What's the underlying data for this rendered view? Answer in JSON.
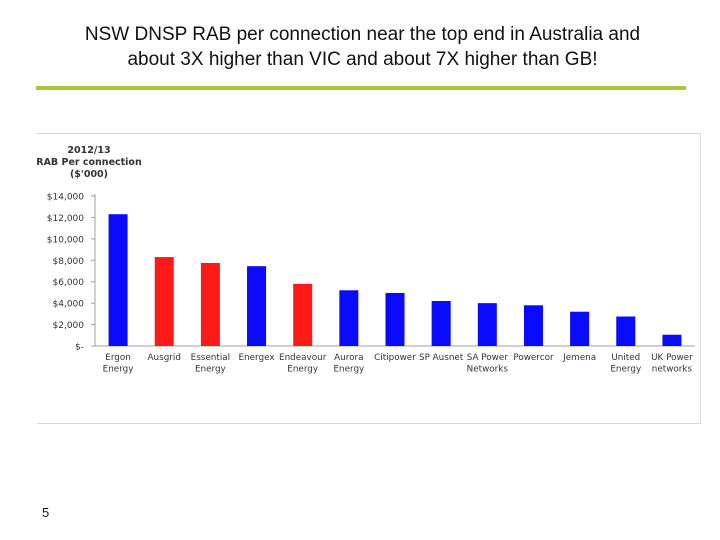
{
  "slide": {
    "title_line1": "NSW DNSP RAB per connection near the top end in Australia and",
    "title_line2": "about 3X higher than VIC and about 7X higher than GB!",
    "page_number": "5",
    "accent_color": "#a8c83a"
  },
  "chart_data": {
    "type": "bar",
    "ylabel_lines": [
      "2012/13",
      "RAB Per connection",
      "($'000)"
    ],
    "ylim": [
      0,
      14000
    ],
    "yticks": [
      0,
      2000,
      4000,
      6000,
      8000,
      10000,
      12000,
      14000
    ],
    "ytick_labels": [
      "$-",
      "$2,000",
      "$4,000",
      "$6,000",
      "$8,000",
      "$10,000",
      "$12,000",
      "$14,000"
    ],
    "categories": [
      [
        "Ergon",
        "Energy"
      ],
      [
        "Ausgrid"
      ],
      [
        "Essential",
        "Energy"
      ],
      [
        "Energex"
      ],
      [
        "Endeavour",
        "Energy"
      ],
      [
        "Aurora",
        "Energy"
      ],
      [
        "Citipower"
      ],
      [
        "SP Ausnet"
      ],
      [
        "SA Power",
        "Networks"
      ],
      [
        "Powercor"
      ],
      [
        "Jemena"
      ],
      [
        "United",
        "Energy"
      ],
      [
        "UK Power",
        "networks"
      ]
    ],
    "values": [
      12300,
      8300,
      7750,
      7450,
      5800,
      5200,
      4950,
      4200,
      4000,
      3800,
      3200,
      2750,
      1050
    ],
    "bar_colors": [
      "#0a0aff",
      "#ff1a1a",
      "#ff1a1a",
      "#0a0aff",
      "#ff1a1a",
      "#0a0aff",
      "#0a0aff",
      "#0a0aff",
      "#0a0aff",
      "#0a0aff",
      "#0a0aff",
      "#0a0aff",
      "#0a0aff"
    ],
    "grid": false,
    "legend": "none"
  }
}
